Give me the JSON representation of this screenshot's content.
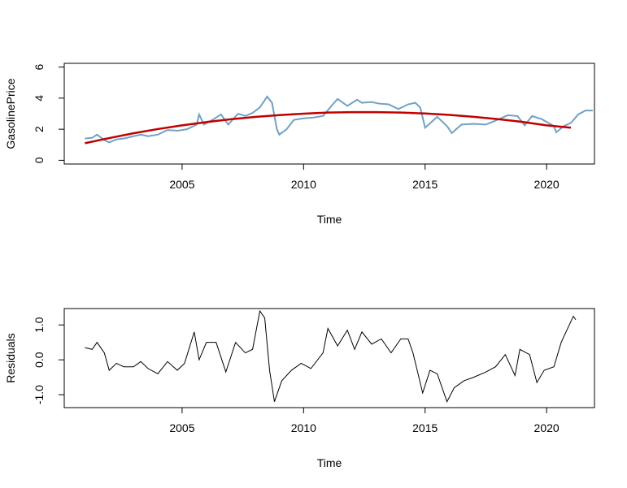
{
  "chart_data": [
    {
      "type": "line",
      "xlabel": "Time",
      "ylabel": "GasolinePrice",
      "xlim": [
        2000.15,
        2021.97
      ],
      "ylim": [
        -0.24,
        6.24
      ],
      "xticks": [
        2005,
        2010,
        2015,
        2020
      ],
      "yticks": [
        0,
        2,
        4,
        6
      ],
      "series": [
        {
          "color": "#6fa2c4",
          "x": [
            2001.0,
            2001.3,
            2001.5,
            2001.8,
            2002.0,
            2002.3,
            2002.6,
            2003.0,
            2003.3,
            2003.6,
            2004.0,
            2004.4,
            2004.8,
            2005.2,
            2005.6,
            2005.7,
            2005.9,
            2006.3,
            2006.6,
            2006.9,
            2007.3,
            2007.6,
            2007.9,
            2008.2,
            2008.5,
            2008.7,
            2008.9,
            2009.0,
            2009.3,
            2009.6,
            2010.0,
            2010.4,
            2010.8,
            2011.2,
            2011.4,
            2011.8,
            2012.2,
            2012.4,
            2012.8,
            2013.1,
            2013.5,
            2013.9,
            2014.3,
            2014.6,
            2014.8,
            2015.0,
            2015.5,
            2015.9,
            2016.1,
            2016.5,
            2017.0,
            2017.5,
            2017.9,
            2018.4,
            2018.8,
            2019.1,
            2019.4,
            2019.8,
            2020.3,
            2020.4,
            2020.7,
            2021.0,
            2021.3,
            2021.6,
            2021.9
          ],
          "values": [
            1.4,
            1.45,
            1.65,
            1.3,
            1.15,
            1.35,
            1.4,
            1.55,
            1.65,
            1.55,
            1.65,
            1.95,
            1.9,
            2.0,
            2.3,
            2.95,
            2.3,
            2.65,
            2.95,
            2.3,
            3.0,
            2.85,
            3.05,
            3.4,
            4.1,
            3.7,
            2.0,
            1.65,
            2.0,
            2.6,
            2.7,
            2.75,
            2.85,
            3.6,
            3.95,
            3.5,
            3.9,
            3.7,
            3.75,
            3.65,
            3.6,
            3.3,
            3.6,
            3.7,
            3.4,
            2.1,
            2.8,
            2.2,
            1.75,
            2.3,
            2.35,
            2.3,
            2.55,
            2.9,
            2.85,
            2.25,
            2.85,
            2.65,
            2.2,
            1.8,
            2.2,
            2.4,
            2.95,
            3.2,
            3.2
          ]
        },
        {
          "color": "#c00000",
          "x": [
            2001,
            2002,
            2003,
            2004,
            2005,
            2006,
            2007,
            2008,
            2009,
            2010,
            2011,
            2012,
            2013,
            2014,
            2015,
            2016,
            2017,
            2018,
            2019,
            2020,
            2021
          ],
          "values": [
            1.1,
            1.43,
            1.74,
            2.01,
            2.25,
            2.46,
            2.64,
            2.79,
            2.91,
            3.0,
            3.07,
            3.1,
            3.1,
            3.07,
            3.01,
            2.92,
            2.8,
            2.65,
            2.47,
            2.25,
            2.1
          ]
        }
      ]
    },
    {
      "type": "line",
      "xlabel": "Time",
      "ylabel": "Residuals",
      "xlim": [
        2000.15,
        2021.97
      ],
      "ylim": [
        -1.37,
        1.47
      ],
      "xticks": [
        2005,
        2010,
        2015,
        2020
      ],
      "yticks": [
        {
          "value": -1,
          "label": "-1.0"
        },
        {
          "value": 0,
          "label": "0.0"
        },
        {
          "value": 1,
          "label": "1.0"
        }
      ],
      "series": [
        {
          "color": "#000000",
          "x": [
            2001.0,
            2001.3,
            2001.5,
            2001.8,
            2002.0,
            2002.3,
            2002.6,
            2003.0,
            2003.3,
            2003.6,
            2004.0,
            2004.4,
            2004.8,
            2005.1,
            2005.5,
            2005.7,
            2006.0,
            2006.4,
            2006.8,
            2007.2,
            2007.6,
            2007.9,
            2008.2,
            2008.4,
            2008.6,
            2008.8,
            2009.1,
            2009.5,
            2009.9,
            2010.3,
            2010.8,
            2011.0,
            2011.4,
            2011.8,
            2012.1,
            2012.4,
            2012.8,
            2013.2,
            2013.6,
            2014.0,
            2014.3,
            2014.5,
            2014.9,
            2015.2,
            2015.5,
            2015.9,
            2016.2,
            2016.6,
            2017.0,
            2017.5,
            2017.9,
            2018.3,
            2018.7,
            2018.9,
            2019.3,
            2019.6,
            2019.9,
            2020.3,
            2020.6,
            2020.9,
            2021.1,
            2021.2
          ],
          "values": [
            0.35,
            0.3,
            0.5,
            0.2,
            -0.3,
            -0.1,
            -0.2,
            -0.2,
            -0.05,
            -0.25,
            -0.4,
            -0.05,
            -0.3,
            -0.1,
            0.8,
            0.0,
            0.5,
            0.5,
            -0.35,
            0.5,
            0.2,
            0.3,
            1.4,
            1.2,
            -0.3,
            -1.2,
            -0.6,
            -0.3,
            -0.1,
            -0.25,
            0.2,
            0.9,
            0.4,
            0.85,
            0.3,
            0.8,
            0.45,
            0.6,
            0.2,
            0.6,
            0.6,
            0.2,
            -0.95,
            -0.3,
            -0.4,
            -1.2,
            -0.8,
            -0.6,
            -0.5,
            -0.35,
            -0.2,
            0.15,
            -0.45,
            0.3,
            0.15,
            -0.65,
            -0.3,
            -0.2,
            0.5,
            0.95,
            1.25,
            1.15
          ]
        }
      ]
    }
  ]
}
